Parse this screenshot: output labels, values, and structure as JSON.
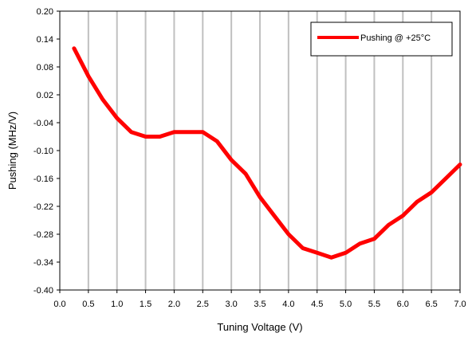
{
  "chart_data": {
    "type": "line",
    "xlabel": "Tuning Voltage (V)",
    "ylabel": "Pushing (MHz/V)",
    "xlim": [
      0.0,
      7.0
    ],
    "ylim": [
      -0.4,
      0.2
    ],
    "x_ticks": [
      "0.0",
      "0.5",
      "1.0",
      "1.5",
      "2.0",
      "2.5",
      "3.0",
      "3.5",
      "4.0",
      "4.5",
      "5.0",
      "5.5",
      "6.0",
      "6.5",
      "7.0"
    ],
    "y_ticks": [
      "0.20",
      "0.14",
      "0.08",
      "0.02",
      "-0.04",
      "-0.10",
      "-0.16",
      "-0.22",
      "-0.28",
      "-0.34",
      "-0.40"
    ],
    "grid": "vertical",
    "legend_position": "top-right",
    "series": [
      {
        "name": "Pushing @ +25°C",
        "color": "#ff0000",
        "x": [
          0.25,
          0.5,
          0.75,
          1.0,
          1.25,
          1.5,
          1.75,
          2.0,
          2.25,
          2.5,
          2.75,
          3.0,
          3.25,
          3.5,
          3.75,
          4.0,
          4.25,
          4.5,
          4.75,
          5.0,
          5.25,
          5.5,
          5.75,
          6.0,
          6.25,
          6.5,
          6.75,
          7.0
        ],
        "y": [
          0.12,
          0.06,
          0.01,
          -0.03,
          -0.06,
          -0.07,
          -0.07,
          -0.06,
          -0.06,
          -0.06,
          -0.08,
          -0.12,
          -0.15,
          -0.2,
          -0.24,
          -0.28,
          -0.31,
          -0.32,
          -0.33,
          -0.32,
          -0.3,
          -0.29,
          -0.26,
          -0.24,
          -0.21,
          -0.19,
          -0.16,
          -0.13
        ]
      }
    ]
  }
}
